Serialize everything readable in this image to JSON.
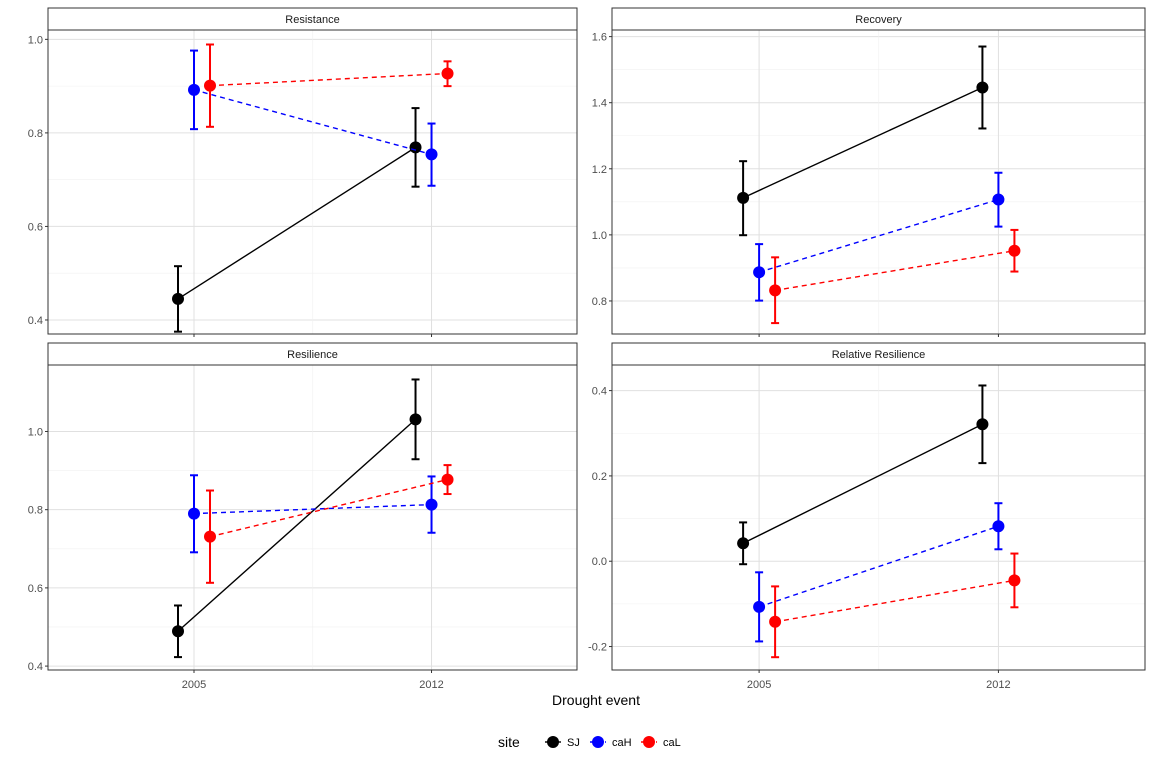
{
  "figure": {
    "xlabel": "Drought event",
    "legend": {
      "title": "site",
      "position": "bottom",
      "entries": [
        {
          "name": "SJ",
          "color": "#000000",
          "linetype": "solid"
        },
        {
          "name": "caH",
          "color": "#0000ff",
          "linetype": "dashed"
        },
        {
          "name": "caL",
          "color": "#ff0000",
          "linetype": "dashed"
        }
      ]
    }
  },
  "chart_data": [
    {
      "type": "line",
      "title": "Resistance",
      "x": [
        "2005",
        "2012"
      ],
      "ylim": [
        0.37,
        1.02
      ],
      "yticks": [
        0.4,
        0.6,
        0.8,
        1.0
      ],
      "ytick_labels": [
        "0.4",
        "0.6",
        "0.8",
        "1.0"
      ],
      "grid": true,
      "series": [
        {
          "name": "SJ",
          "values": [
            0.445,
            0.769
          ],
          "lower": [
            0.375,
            0.685
          ],
          "upper": [
            0.515,
            0.853
          ]
        },
        {
          "name": "caH",
          "values": [
            0.892,
            0.754
          ],
          "lower": [
            0.808,
            0.687
          ],
          "upper": [
            0.976,
            0.82
          ]
        },
        {
          "name": "caL",
          "values": [
            0.901,
            0.927
          ],
          "lower": [
            0.813,
            0.9
          ],
          "upper": [
            0.989,
            0.953
          ]
        }
      ]
    },
    {
      "type": "line",
      "title": "Recovery",
      "x": [
        "2005",
        "2012"
      ],
      "ylim": [
        0.7,
        1.62
      ],
      "yticks": [
        0.8,
        1.0,
        1.2,
        1.4,
        1.6
      ],
      "ytick_labels": [
        "0.8",
        "1.0",
        "1.2",
        "1.4",
        "1.6"
      ],
      "grid": true,
      "series": [
        {
          "name": "SJ",
          "values": [
            1.112,
            1.446
          ],
          "lower": [
            0.999,
            1.322
          ],
          "upper": [
            1.223,
            1.57
          ]
        },
        {
          "name": "caH",
          "values": [
            0.887,
            1.107
          ],
          "lower": [
            0.801,
            1.025
          ],
          "upper": [
            0.972,
            1.188
          ]
        },
        {
          "name": "caL",
          "values": [
            0.832,
            0.952
          ],
          "lower": [
            0.733,
            0.889
          ],
          "upper": [
            0.932,
            1.015
          ]
        }
      ]
    },
    {
      "type": "line",
      "title": "Resilience",
      "x": [
        "2005",
        "2012"
      ],
      "ylim": [
        0.39,
        1.17
      ],
      "yticks": [
        0.4,
        0.6,
        0.8,
        1.0
      ],
      "ytick_labels": [
        "0.4",
        "0.6",
        "0.8",
        "1.0"
      ],
      "grid": true,
      "series": [
        {
          "name": "SJ",
          "values": [
            0.489,
            1.031
          ],
          "lower": [
            0.423,
            0.929
          ],
          "upper": [
            0.555,
            1.133
          ]
        },
        {
          "name": "caH",
          "values": [
            0.79,
            0.813
          ],
          "lower": [
            0.691,
            0.741
          ],
          "upper": [
            0.888,
            0.885
          ]
        },
        {
          "name": "caL",
          "values": [
            0.731,
            0.877
          ],
          "lower": [
            0.613,
            0.84
          ],
          "upper": [
            0.849,
            0.914
          ]
        }
      ]
    },
    {
      "type": "line",
      "title": "Relative Resilience",
      "x": [
        "2005",
        "2012"
      ],
      "ylim": [
        -0.255,
        0.46
      ],
      "yticks": [
        -0.2,
        0.0,
        0.2,
        0.4
      ],
      "ytick_labels": [
        "-0.2",
        "0.0",
        "0.2",
        "0.4"
      ],
      "grid": true,
      "series": [
        {
          "name": "SJ",
          "values": [
            0.042,
            0.321
          ],
          "lower": [
            -0.007,
            0.23
          ],
          "upper": [
            0.091,
            0.412
          ]
        },
        {
          "name": "caH",
          "values": [
            -0.107,
            0.082
          ],
          "lower": [
            -0.188,
            0.028
          ],
          "upper": [
            -0.026,
            0.136
          ]
        },
        {
          "name": "caL",
          "values": [
            -0.142,
            -0.045
          ],
          "lower": [
            -0.225,
            -0.108
          ],
          "upper": [
            -0.059,
            0.018
          ]
        }
      ]
    }
  ]
}
